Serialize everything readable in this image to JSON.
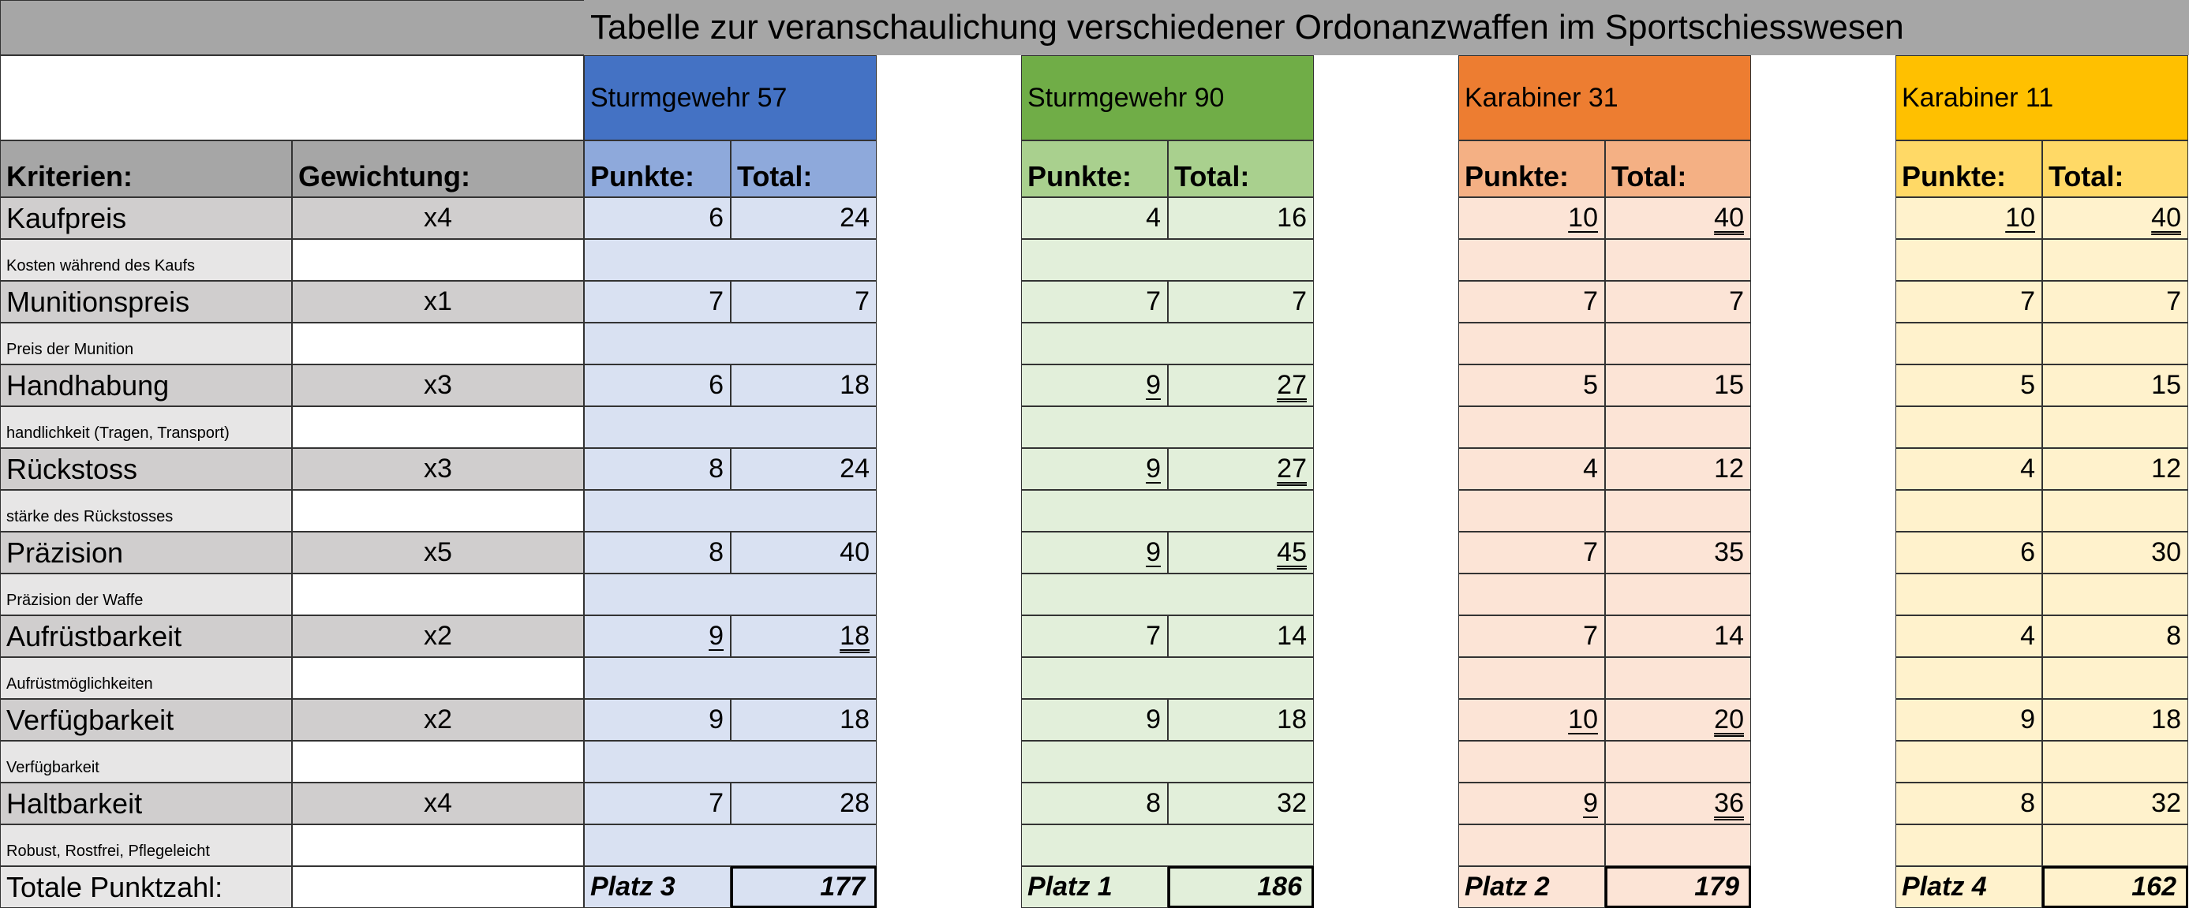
{
  "title": "Tabelle zur veranschaulichung verschiedener Ordonanzwaffen im Sportschiesswesen",
  "headers": {
    "criteria": "Kriterien:",
    "weight": "Gewichtung:",
    "points": "Punkte:",
    "total": "Total:"
  },
  "total_label": "Totale Punktzahl:",
  "colors": {
    "grey_header": "#a6a6a6",
    "grey_row": "#d0cece",
    "grey_desc": "#e7e6e6",
    "weapon_header": [
      "#4472c4",
      "#70ad47",
      "#ed7d31",
      "#ffc000"
    ],
    "weapon_subheader": [
      "#8ea9db",
      "#a9d08e",
      "#f4b084",
      "#ffd966"
    ],
    "weapon_body": [
      "#d9e1f2",
      "#e2efda",
      "#fce4d6",
      "#fff2cc"
    ]
  },
  "criteria": [
    {
      "name": "Kaufpreis",
      "weight": "x4",
      "description": "Kosten während des Kaufs"
    },
    {
      "name": "Munitionspreis",
      "weight": "x1",
      "description": "Preis der Munition"
    },
    {
      "name": "Handhabung",
      "weight": "x3",
      "description": "handlichkeit (Tragen, Transport)"
    },
    {
      "name": "Rückstoss",
      "weight": "x3",
      "description": "stärke des Rückstosses"
    },
    {
      "name": "Präzision",
      "weight": "x5",
      "description": "Präzision der Waffe"
    },
    {
      "name": "Aufrüstbarkeit",
      "weight": "x2",
      "description": "Aufrüstmöglichkeiten"
    },
    {
      "name": "Verfügbarkeit",
      "weight": "x2",
      "description": "Verfügbarkeit"
    },
    {
      "name": "Haltbarkeit",
      "weight": "x4",
      "description": "Robust, Rostfrei, Pflegeleicht"
    }
  ],
  "weapons": [
    {
      "name": "Sturmgewehr 57",
      "points": [
        "6",
        "7",
        "6",
        "8",
        "8",
        "9",
        "9",
        "7"
      ],
      "totals": [
        "24",
        "7",
        "18",
        "24",
        "40",
        "18",
        "18",
        "28"
      ],
      "best": [
        false,
        false,
        false,
        false,
        false,
        true,
        false,
        false
      ],
      "platz": "Platz 3",
      "grand_total": "177"
    },
    {
      "name": "Sturmgewehr 90",
      "points": [
        "4",
        "7",
        "9",
        "9",
        "9",
        "7",
        "9",
        "8"
      ],
      "totals": [
        "16",
        "7",
        "27",
        "27",
        "45",
        "14",
        "18",
        "32"
      ],
      "best": [
        false,
        false,
        true,
        true,
        true,
        false,
        false,
        false
      ],
      "platz": "Platz 1",
      "grand_total": "186"
    },
    {
      "name": "Karabiner 31",
      "points": [
        "10",
        "7",
        "5",
        "4",
        "7",
        "7",
        "10",
        "9"
      ],
      "totals": [
        "40",
        "7",
        "15",
        "12",
        "35",
        "14",
        "20",
        "36"
      ],
      "best": [
        true,
        false,
        false,
        false,
        false,
        false,
        true,
        true
      ],
      "platz": "Platz 2",
      "grand_total": "179"
    },
    {
      "name": "Karabiner 11",
      "points": [
        "10",
        "7",
        "5",
        "4",
        "6",
        "4",
        "9",
        "8"
      ],
      "totals": [
        "40",
        "7",
        "15",
        "12",
        "30",
        "8",
        "18",
        "32"
      ],
      "best": [
        true,
        false,
        false,
        false,
        false,
        false,
        false,
        false
      ],
      "platz": "Platz 4",
      "grand_total": "162"
    }
  ]
}
